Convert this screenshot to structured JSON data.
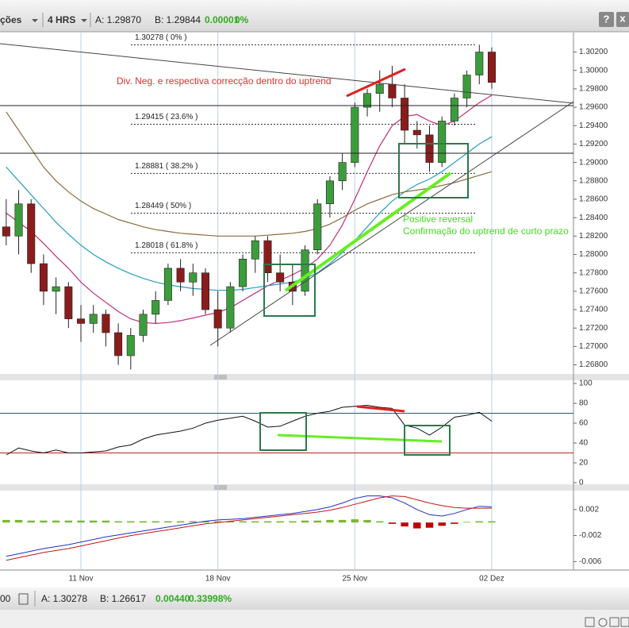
{
  "toolbar": {
    "menu": "ções",
    "timeframe": "4 HRS",
    "ask": "A: 1.29870",
    "bid": "B: 1.29844",
    "change": "0.00001",
    "change_pct": "0%",
    "help": "?",
    "close": "x"
  },
  "footer": {
    "left": "00",
    "ask": "A: 1.30278",
    "bid": "B: 1.26617",
    "change": "0.00440",
    "change_pct": "0.33998%"
  },
  "chart_data": [
    {
      "type": "candlestick",
      "annotations": [
        "Div. Neg. e respectiva correcção dentro do uptrend",
        "Positive reversal",
        "Confirmação do uptrend de curto prazo"
      ],
      "x": [
        0,
        1,
        2,
        3,
        4,
        5,
        6,
        7,
        8,
        9,
        10,
        11,
        12,
        13,
        14,
        15,
        16,
        17,
        18,
        19,
        20,
        21,
        22,
        23,
        24,
        25,
        26,
        27,
        28,
        29,
        30,
        31,
        32,
        33,
        34,
        35,
        36,
        37,
        38,
        39
      ],
      "xlim": [
        -0.5,
        45.5
      ],
      "xticks": [
        {
          "value": 6,
          "label": "11 Nov"
        },
        {
          "value": 17,
          "label": "18 Nov"
        },
        {
          "value": 28,
          "label": "25 Nov"
        },
        {
          "value": 39,
          "label": "02 Dez"
        }
      ],
      "grid": true,
      "up_color": "#3c9c3c",
      "down_color": "#8b1c1c",
      "open": [
        1.283,
        1.282,
        1.2855,
        1.279,
        1.276,
        1.2765,
        1.273,
        1.2725,
        1.2735,
        1.2715,
        1.269,
        1.2712,
        1.2735,
        1.275,
        1.2785,
        1.277,
        1.278,
        1.274,
        1.272,
        1.2765,
        1.2795,
        1.2815,
        1.278,
        1.277,
        1.276,
        1.2805,
        1.2855,
        1.288,
        1.29,
        1.296,
        1.2975,
        1.2985,
        1.297,
        1.2935,
        1.293,
        1.29,
        1.2945,
        1.297,
        1.2995,
        1.302
      ],
      "high": [
        1.286,
        1.287,
        1.286,
        1.28,
        1.2775,
        1.277,
        1.2745,
        1.2745,
        1.274,
        1.2725,
        1.272,
        1.274,
        1.276,
        1.279,
        1.2795,
        1.279,
        1.2785,
        1.276,
        1.277,
        1.28,
        1.282,
        1.282,
        1.28,
        1.279,
        1.281,
        1.286,
        1.2885,
        1.291,
        1.2965,
        1.298,
        1.3,
        1.3005,
        1.2985,
        1.2945,
        1.294,
        1.295,
        1.2975,
        1.3,
        1.3028,
        1.3025
      ],
      "low": [
        1.281,
        1.28,
        1.278,
        1.2745,
        1.2735,
        1.272,
        1.2705,
        1.2715,
        1.27,
        1.268,
        1.2675,
        1.2705,
        1.2725,
        1.2745,
        1.276,
        1.2755,
        1.2735,
        1.27,
        1.2715,
        1.276,
        1.278,
        1.277,
        1.276,
        1.2745,
        1.2755,
        1.28,
        1.284,
        1.287,
        1.2895,
        1.295,
        1.2955,
        1.296,
        1.292,
        1.2915,
        1.289,
        1.2895,
        1.294,
        1.296,
        1.2985,
        1.298
      ],
      "close": [
        1.282,
        1.2855,
        1.279,
        1.276,
        1.2765,
        1.273,
        1.2725,
        1.2735,
        1.2715,
        1.269,
        1.2712,
        1.2735,
        1.275,
        1.2785,
        1.277,
        1.278,
        1.274,
        1.272,
        1.2765,
        1.2795,
        1.2815,
        1.278,
        1.277,
        1.276,
        1.2805,
        1.2855,
        1.288,
        1.29,
        1.296,
        1.2975,
        1.2985,
        1.297,
        1.2935,
        1.293,
        1.29,
        1.2945,
        1.297,
        1.2995,
        1.302,
        1.2987
      ],
      "series": [
        {
          "color": "#c0307a",
          "values": [
            1.2845,
            1.2835,
            1.2825,
            1.2812,
            1.2798,
            1.2785,
            1.277,
            1.2758,
            1.2748,
            1.2738,
            1.273,
            1.2726,
            1.2725,
            1.2726,
            1.2728,
            1.2731,
            1.2734,
            1.2737,
            1.2742,
            1.275,
            1.2758,
            1.2766,
            1.2772,
            1.2778,
            1.2785,
            1.2795,
            1.281,
            1.2832,
            1.286,
            1.289,
            1.2918,
            1.294,
            1.295,
            1.2952,
            1.2945,
            1.294,
            1.2945,
            1.2955,
            1.2965,
            1.2973
          ]
        },
        {
          "color": "#2a9cc0",
          "values": [
            1.2895,
            1.288,
            1.2865,
            1.285,
            1.2835,
            1.2822,
            1.281,
            1.28,
            1.2792,
            1.2785,
            1.2779,
            1.2774,
            1.277,
            1.2767,
            1.2765,
            1.2763,
            1.2762,
            1.2761,
            1.2761,
            1.2762,
            1.2764,
            1.2766,
            1.2768,
            1.277,
            1.2774,
            1.278,
            1.279,
            1.2802,
            1.2815,
            1.283,
            1.2845,
            1.2858,
            1.2868,
            1.2876,
            1.2882,
            1.289,
            1.29,
            1.291,
            1.292,
            1.2928
          ]
        },
        {
          "color": "#8b6b3a",
          "values": [
            1.2955,
            1.2935,
            1.2915,
            1.2895,
            1.288,
            1.2868,
            1.2858,
            1.285,
            1.2844,
            1.2838,
            1.2834,
            1.283,
            1.2827,
            1.2825,
            1.2823,
            1.2822,
            1.2821,
            1.282,
            1.282,
            1.282,
            1.282,
            1.2821,
            1.2822,
            1.2823,
            1.2825,
            1.2828,
            1.2833,
            1.284,
            1.2848,
            1.2855,
            1.286,
            1.2865,
            1.2868,
            1.287,
            1.2872,
            1.2875,
            1.2878,
            1.2882,
            1.2886,
            1.289
          ]
        }
      ],
      "fib_levels": [
        {
          "value": 1.30278,
          "label": "1.30278 ( 0% )"
        },
        {
          "value": 1.29415,
          "label": "1.29415 ( 23.6% )"
        },
        {
          "value": 1.28881,
          "label": "1.28881 ( 38.2% )"
        },
        {
          "value": 1.28449,
          "label": "1.28449 ( 50% )"
        },
        {
          "value": 1.28018,
          "label": "1.28018 ( 61.8% )"
        }
      ],
      "ylim": [
        1.2671,
        1.3036
      ],
      "yticks": [
        {
          "value": 1.268,
          "label": "1.26800"
        },
        {
          "value": 1.27,
          "label": "1.27000"
        },
        {
          "value": 1.272,
          "label": "1.27200"
        },
        {
          "value": 1.274,
          "label": "1.27400"
        },
        {
          "value": 1.276,
          "label": "1.27600"
        },
        {
          "value": 1.278,
          "label": "1.27800"
        },
        {
          "value": 1.28,
          "label": "1.28000"
        },
        {
          "value": 1.282,
          "label": "1.28200"
        },
        {
          "value": 1.284,
          "label": "1.28400"
        },
        {
          "value": 1.286,
          "label": "1.28600"
        },
        {
          "value": 1.288,
          "label": "1.28800"
        },
        {
          "value": 1.29,
          "label": "1.29000"
        },
        {
          "value": 1.292,
          "label": "1.29200"
        },
        {
          "value": 1.294,
          "label": "1.29400"
        },
        {
          "value": 1.296,
          "label": "1.29600"
        },
        {
          "value": 1.298,
          "label": "1.29800"
        },
        {
          "value": 1.3,
          "label": "1.30000"
        },
        {
          "value": 1.302,
          "label": "1.30200"
        }
      ]
    },
    {
      "type": "line",
      "color": "#111111",
      "values": [
        28,
        35,
        32,
        30,
        33,
        30,
        30,
        31,
        32,
        36,
        38,
        44,
        48,
        50,
        52,
        55,
        60,
        63,
        65,
        67,
        62,
        56,
        57,
        62,
        67,
        70,
        72,
        76,
        77,
        78,
        76,
        75,
        58,
        55,
        48,
        56,
        66,
        68,
        71,
        62
      ],
      "levels": [
        {
          "value": 70,
          "color": "#2a5a6a"
        },
        {
          "value": 30,
          "color": "#c02020"
        }
      ],
      "ylim": [
        0,
        100
      ],
      "yticks": [
        0,
        20,
        40,
        60,
        80,
        100
      ]
    },
    {
      "type": "macd",
      "series": [
        {
          "color": "#2030c0",
          "values": [
            -0.0052,
            -0.0048,
            -0.0044,
            -0.004,
            -0.0037,
            -0.0034,
            -0.003,
            -0.0026,
            -0.0022,
            -0.0019,
            -0.0016,
            -0.0013,
            -0.001,
            -0.0007,
            -0.0004,
            -0.0001,
            0.0002,
            0.0004,
            0.0005,
            0.0006,
            0.0008,
            0.001,
            0.0012,
            0.0014,
            0.0017,
            0.002,
            0.0024,
            0.003,
            0.0037,
            0.0041,
            0.0041,
            0.0038,
            0.003,
            0.002,
            0.0012,
            0.001,
            0.0014,
            0.002,
            0.0025,
            0.0024
          ]
        },
        {
          "color": "#c01818",
          "values": [
            -0.0058,
            -0.0054,
            -0.005,
            -0.0046,
            -0.0043,
            -0.004,
            -0.0036,
            -0.0032,
            -0.0028,
            -0.0024,
            -0.002,
            -0.0017,
            -0.0014,
            -0.0011,
            -0.0008,
            -0.0005,
            -0.0002,
            0.0,
            0.0002,
            0.0004,
            0.0006,
            0.0008,
            0.001,
            0.0012,
            0.0014,
            0.0016,
            0.0019,
            0.0023,
            0.0028,
            0.0033,
            0.0038,
            0.0041,
            0.004,
            0.0035,
            0.003,
            0.0026,
            0.0023,
            0.0022,
            0.0022,
            0.0022
          ]
        }
      ],
      "histogram": [
        0.0004,
        0.0004,
        0.0003,
        0.0003,
        0.0003,
        0.0003,
        0.0003,
        0.0003,
        0.0003,
        0.0002,
        0.0002,
        0.0002,
        0.0002,
        0.0002,
        0.0002,
        0.0002,
        0.0002,
        0.0002,
        0.0002,
        0.0002,
        0.0002,
        0.0002,
        0.0002,
        0.0002,
        0.0003,
        0.0003,
        0.0004,
        0.0004,
        0.0005,
        0.0004,
        0.0002,
        -0.0002,
        -0.0006,
        -0.0009,
        -0.0008,
        -0.0005,
        -0.0002,
        0.0001,
        0.0002,
        0.0002
      ],
      "positive_color": "#7ab830",
      "negative_color": "#c00000",
      "ylim": [
        -0.0073,
        0.0049
      ],
      "yticks": [
        0.002,
        -0.002,
        -0.006
      ]
    }
  ]
}
